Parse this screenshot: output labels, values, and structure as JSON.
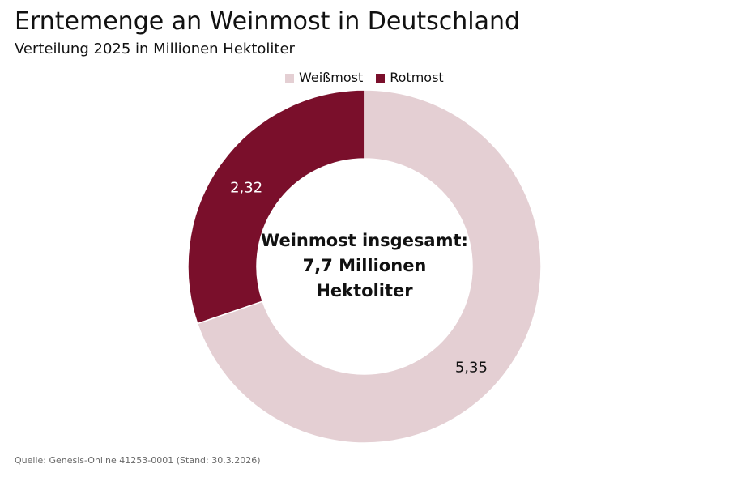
{
  "header": {
    "title": "Erntemenge an Weinmost in Deutschland",
    "subtitle": "Verteilung 2025 in Millionen Hektoliter"
  },
  "center": {
    "line1": "Weinmost insgesamt:",
    "line2": "7,7 Millionen",
    "line3": "Hektoliter"
  },
  "source": "Quelle: Genesis-Online 41253-0001 (Stand: 30.3.2026)",
  "colors": {
    "weissmost": "#e4cfd3",
    "rotmost": "#7a0f2b"
  },
  "chart_data": {
    "type": "pie",
    "donut": true,
    "start_angle": "12 o'clock",
    "direction": "clockwise",
    "title": "Erntemenge an Weinmost in Deutschland",
    "subtitle": "Verteilung 2025 in Millionen Hektoliter",
    "legend_position": "top",
    "slices": [
      {
        "name": "Weißmost",
        "value": 5.35,
        "label": "5,35",
        "color": "#e4cfd3"
      },
      {
        "name": "Rotmost",
        "value": 2.32,
        "label": "2,32",
        "color": "#7a0f2b"
      }
    ]
  }
}
